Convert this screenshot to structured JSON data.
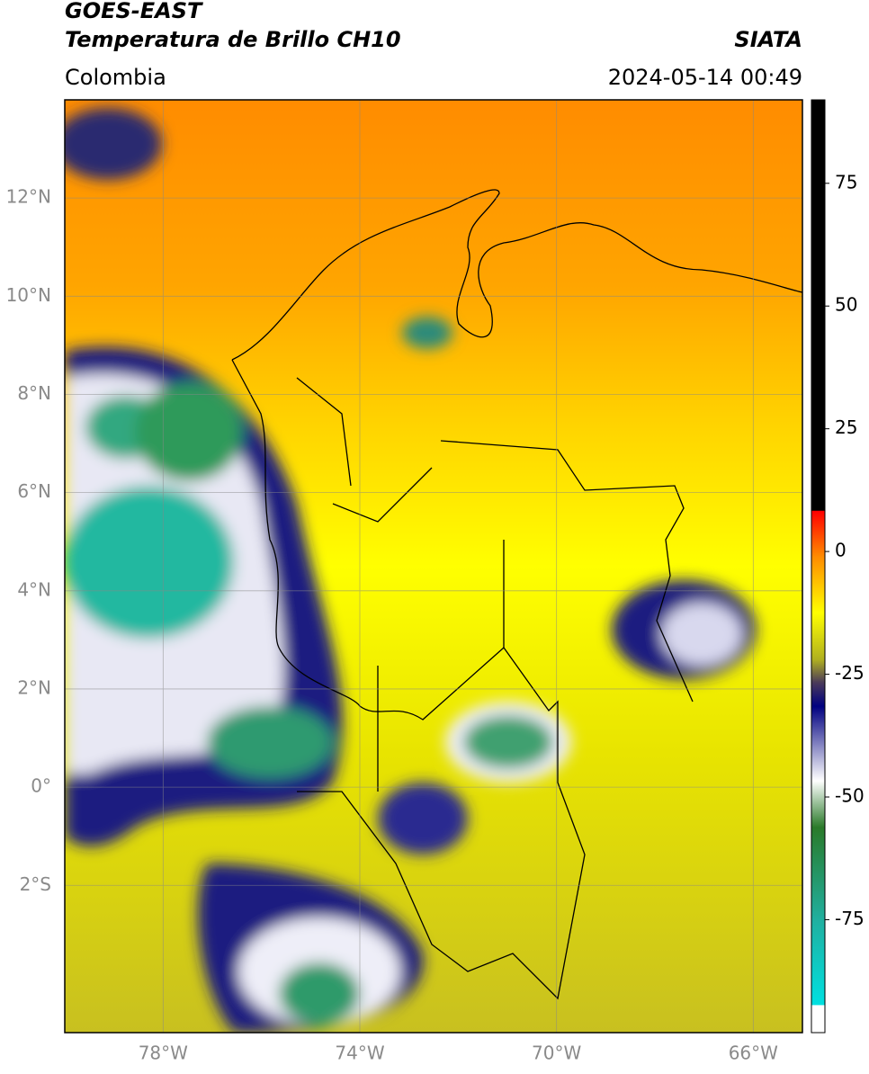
{
  "header": {
    "source": "GOES-EAST",
    "product": "Temperatura de Brillo CH10",
    "agency": "SIATA",
    "region": "Colombia",
    "datetime": "2024-05-14 00:49"
  },
  "map": {
    "xlim": [
      -80,
      -65
    ],
    "ylim": [
      -5,
      14
    ],
    "xticks": [
      {
        "value": -78,
        "label": "78°W"
      },
      {
        "value": -74,
        "label": "74°W"
      },
      {
        "value": -70,
        "label": "70°W"
      },
      {
        "value": -66,
        "label": "66°W"
      }
    ],
    "yticks": [
      {
        "value": 12,
        "label": "12°N"
      },
      {
        "value": 10,
        "label": "10°N"
      },
      {
        "value": 8,
        "label": "8°N"
      },
      {
        "value": 6,
        "label": "6°N"
      },
      {
        "value": 4,
        "label": "4°N"
      },
      {
        "value": 2,
        "label": "2°N"
      },
      {
        "value": 0,
        "label": "0°"
      },
      {
        "value": -2,
        "label": "2°S"
      }
    ],
    "grid": true
  },
  "colorbar": {
    "clim": [
      -98,
      92
    ],
    "ticks": [
      75,
      50,
      25,
      0,
      -25,
      -50,
      -75
    ]
  }
}
